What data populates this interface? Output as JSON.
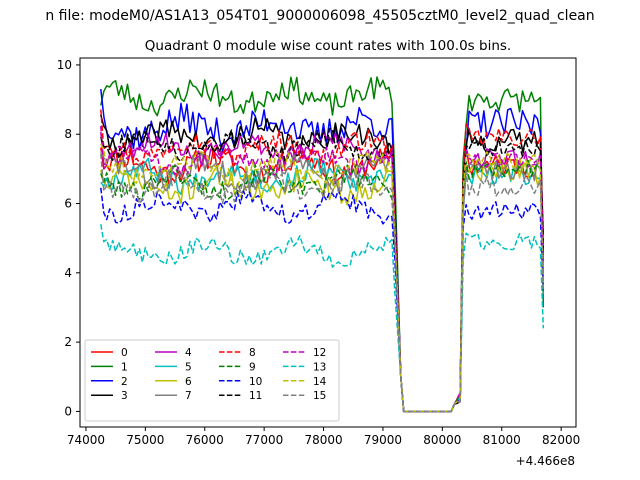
{
  "figure": {
    "suptitle": "n file: modeM0/AS1A13_054T01_9000006098_45505cztM0_level2_quad_clean"
  },
  "chart_data": {
    "type": "line",
    "title": "Quadrant 0 module wise count rates with 100.0s bins.",
    "xlabel": "",
    "ylabel": "",
    "x_offset_label": "+4.466e8",
    "xlim": [
      73900,
      82250
    ],
    "ylim": [
      -0.45,
      10.2
    ],
    "xticks": [
      74000,
      75000,
      76000,
      77000,
      78000,
      79000,
      80000,
      81000,
      82000
    ],
    "yticks": [
      0,
      2,
      4,
      6,
      8,
      10
    ],
    "grid": false,
    "legend": {
      "placement": "lower-left",
      "columns": 4
    },
    "segments": [
      {
        "x_start": 74250,
        "x_end": 79150,
        "step": 50
      },
      {
        "x_start": 80400,
        "x_end": 81650,
        "step": 50
      }
    ],
    "x_gap": [
      79200,
      79300,
      79350,
      79400,
      80150,
      80200,
      80300,
      80350
    ],
    "x_tail": [
      81700
    ],
    "series": [
      {
        "name": "0",
        "color": "#ff0000",
        "dash": "solid",
        "level_pre": 7.1,
        "start": 7.8,
        "level_post": 7.1,
        "post_start": 7.6,
        "tail": 4.0,
        "amp": 0.35,
        "seed": 11
      },
      {
        "name": "1",
        "color": "#008000",
        "dash": "solid",
        "level_pre": 9.1,
        "start": 8.8,
        "level_post": 9.0,
        "post_start": 8.5,
        "tail": 3.0,
        "amp": 0.35,
        "seed": 23
      },
      {
        "name": "2",
        "color": "#0000ff",
        "dash": "solid",
        "level_pre": 8.2,
        "start": 9.3,
        "level_post": 8.3,
        "post_start": 7.6,
        "tail": 4.5,
        "amp": 0.45,
        "seed": 37
      },
      {
        "name": "3",
        "color": "#000000",
        "dash": "solid",
        "level_pre": 7.9,
        "start": 8.7,
        "level_post": 7.8,
        "post_start": 7.4,
        "tail": 5.1,
        "amp": 0.35,
        "seed": 41
      },
      {
        "name": "4",
        "color": "#bf00bf",
        "dash": "solid",
        "level_pre": 7.6,
        "start": 8.4,
        "level_post": 7.3,
        "post_start": 7.1,
        "tail": 4.2,
        "amp": 0.3,
        "seed": 53
      },
      {
        "name": "5",
        "color": "#00bfbf",
        "dash": "solid",
        "level_pre": 6.8,
        "start": 7.0,
        "level_post": 6.8,
        "post_start": 6.8,
        "tail": 3.8,
        "amp": 0.3,
        "seed": 67
      },
      {
        "name": "6",
        "color": "#bfbf00",
        "dash": "solid",
        "level_pre": 6.5,
        "start": 7.2,
        "level_post": 6.9,
        "post_start": 7.3,
        "tail": 4.1,
        "amp": 0.35,
        "seed": 71
      },
      {
        "name": "7",
        "color": "#808080",
        "dash": "solid",
        "level_pre": 6.9,
        "start": 7.5,
        "level_post": 7.0,
        "post_start": 6.8,
        "tail": 3.9,
        "amp": 0.35,
        "seed": 83
      },
      {
        "name": "8",
        "color": "#ff0000",
        "dash": "dashed",
        "level_pre": 7.6,
        "start": 8.6,
        "level_post": 7.9,
        "post_start": 8.0,
        "tail": 4.8,
        "amp": 0.3,
        "seed": 97
      },
      {
        "name": "9",
        "color": "#008000",
        "dash": "dashed",
        "level_pre": 6.6,
        "start": 6.9,
        "level_post": 7.0,
        "post_start": 7.2,
        "tail": 3.7,
        "amp": 0.3,
        "seed": 101
      },
      {
        "name": "10",
        "color": "#0000ff",
        "dash": "dashed",
        "level_pre": 5.9,
        "start": 6.7,
        "level_post": 5.8,
        "post_start": 6.2,
        "tail": 3.5,
        "amp": 0.25,
        "seed": 113
      },
      {
        "name": "11",
        "color": "#000000",
        "dash": "dashed",
        "level_pre": 7.7,
        "start": 8.3,
        "level_post": 7.6,
        "post_start": 7.8,
        "tail": 4.6,
        "amp": 0.3,
        "seed": 127
      },
      {
        "name": "12",
        "color": "#bf00bf",
        "dash": "dashed",
        "level_pre": 7.3,
        "start": 8.5,
        "level_post": 7.3,
        "post_start": 7.4,
        "tail": 4.3,
        "amp": 0.3,
        "seed": 131
      },
      {
        "name": "13",
        "color": "#00bfbf",
        "dash": "dashed",
        "level_pre": 4.6,
        "start": 5.4,
        "level_post": 4.9,
        "post_start": 5.1,
        "tail": 2.4,
        "amp": 0.25,
        "seed": 149
      },
      {
        "name": "14",
        "color": "#bfbf00",
        "dash": "dashed",
        "level_pre": 7.0,
        "start": 7.6,
        "level_post": 7.2,
        "post_start": 7.5,
        "tail": 3.6,
        "amp": 0.3,
        "seed": 151
      },
      {
        "name": "15",
        "color": "#808080",
        "dash": "dashed",
        "level_pre": 6.5,
        "start": 7.4,
        "level_post": 6.5,
        "post_start": 6.7,
        "tail": 3.4,
        "amp": 0.3,
        "seed": 163
      }
    ],
    "gap_values": [
      5.8,
      1.0,
      0.0,
      0.0,
      0.0,
      0.2,
      0.8,
      3.0
    ]
  }
}
